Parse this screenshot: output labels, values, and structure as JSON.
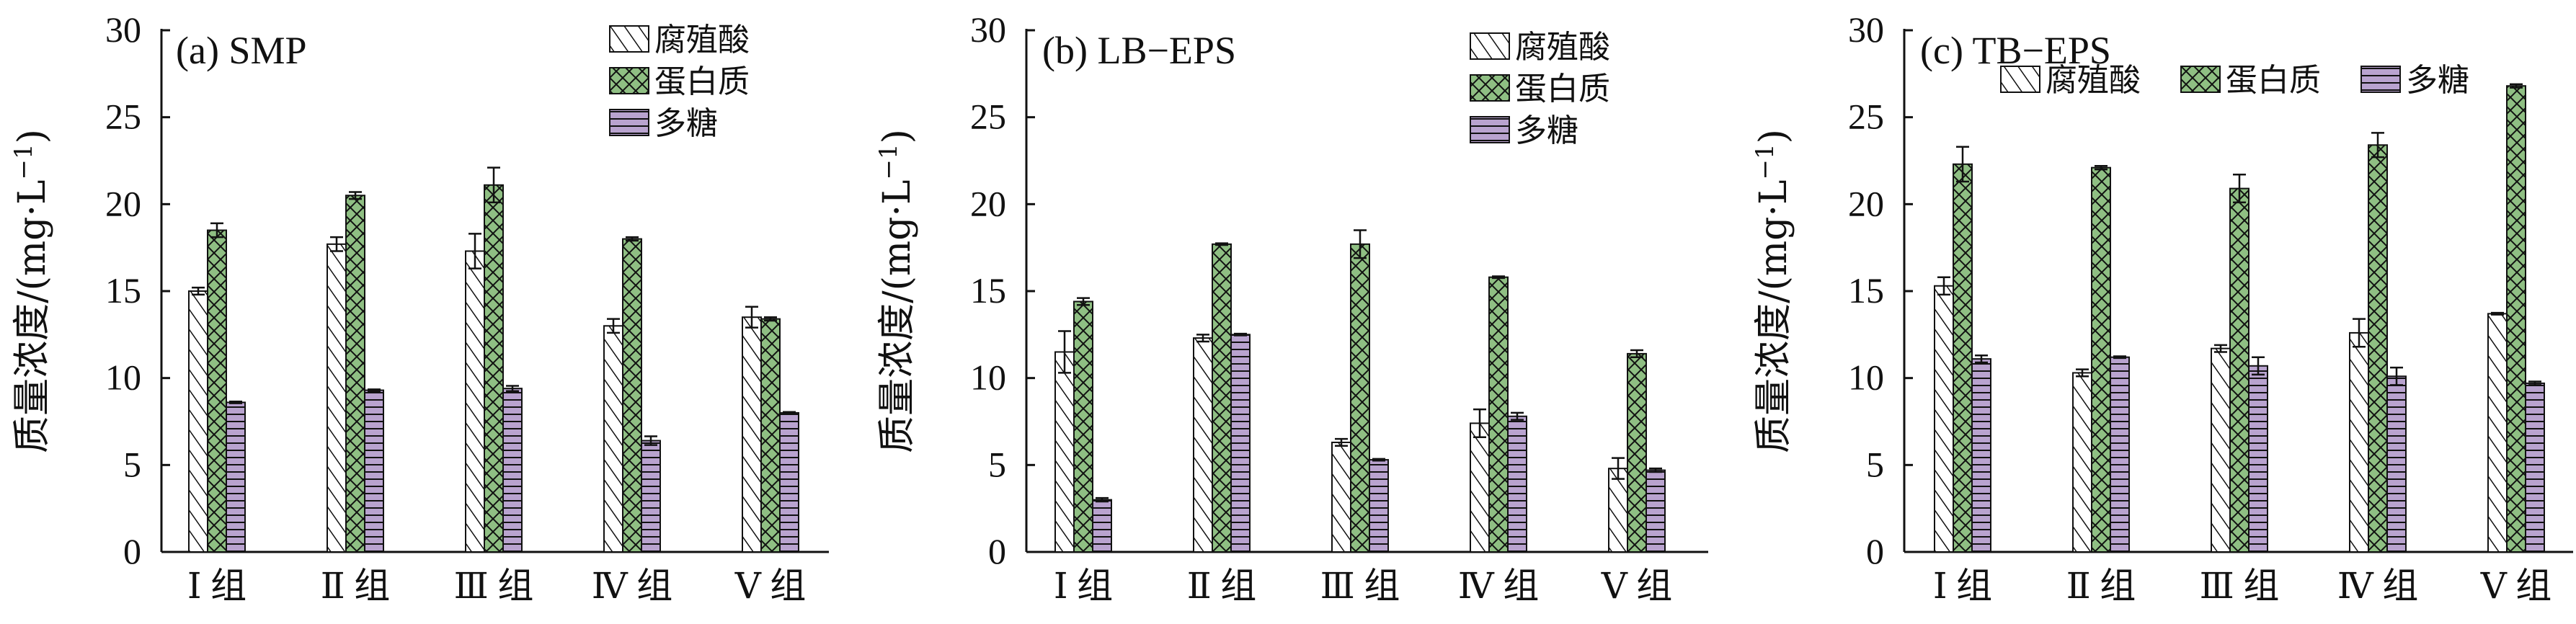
{
  "colors": {
    "humic": "#ffffff",
    "protein": "#8fbf83",
    "polysaccharide": "#b9a3cf",
    "stroke": "#111111"
  },
  "chart_data": [
    {
      "type": "bar",
      "title": "(a)  SMP",
      "ylabel": "质量浓度/(mg·L",
      "ylabel_sup": "−1",
      "ylabel_close": ")",
      "ylim": [
        0,
        30
      ],
      "yticks": [
        "0",
        "5",
        "10",
        "15",
        "20",
        "25",
        "30"
      ],
      "categories": [
        "Ⅰ 组",
        "Ⅱ 组",
        "Ⅲ 组",
        "Ⅳ 组",
        "Ⅴ 组"
      ],
      "legend_position": "top-right-stacked",
      "series": [
        {
          "name": "腐殖酸",
          "key": "humic",
          "values": [
            15.0,
            17.7,
            17.3,
            13.0,
            13.5
          ],
          "errors": [
            0.2,
            0.4,
            1.0,
            0.4,
            0.6
          ]
        },
        {
          "name": "蛋白质",
          "key": "protein",
          "values": [
            18.5,
            20.5,
            21.1,
            18.0,
            13.4
          ],
          "errors": [
            0.4,
            0.2,
            1.0,
            0.1,
            0.1
          ]
        },
        {
          "name": "多糖",
          "key": "polysaccharide",
          "values": [
            8.6,
            9.3,
            9.4,
            6.4,
            8.0
          ],
          "errors": [
            0.05,
            0.05,
            0.15,
            0.25,
            0.05
          ]
        }
      ]
    },
    {
      "type": "bar",
      "title": "(b)  LB−EPS",
      "ylabel": "质量浓度/(mg·L",
      "ylabel_sup": "−1",
      "ylabel_close": ")",
      "ylim": [
        0,
        30
      ],
      "yticks": [
        "0",
        "5",
        "10",
        "15",
        "20",
        "25",
        "30"
      ],
      "categories": [
        "Ⅰ 组",
        "Ⅱ 组",
        "Ⅲ 组",
        "Ⅳ 组",
        "Ⅴ 组"
      ],
      "legend_position": "top-right-stacked",
      "series": [
        {
          "name": "腐殖酸",
          "key": "humic",
          "values": [
            11.5,
            12.3,
            6.3,
            7.4,
            4.8
          ],
          "errors": [
            1.2,
            0.2,
            0.2,
            0.8,
            0.6
          ]
        },
        {
          "name": "蛋白质",
          "key": "protein",
          "values": [
            14.4,
            17.7,
            17.7,
            15.8,
            11.4
          ],
          "errors": [
            0.2,
            0.05,
            0.8,
            0.05,
            0.2
          ]
        },
        {
          "name": "多糖",
          "key": "polysaccharide",
          "values": [
            3.0,
            12.5,
            5.3,
            7.8,
            4.7
          ],
          "errors": [
            0.1,
            0.05,
            0.05,
            0.2,
            0.1
          ]
        }
      ]
    },
    {
      "type": "bar",
      "title": "(c)  TB−EPS",
      "ylabel": "质量浓度/(mg·L",
      "ylabel_sup": "−1",
      "ylabel_close": ")",
      "ylim": [
        0,
        30
      ],
      "yticks": [
        "0",
        "5",
        "10",
        "15",
        "20",
        "25",
        "30"
      ],
      "categories": [
        "Ⅰ 组",
        "Ⅱ 组",
        "Ⅲ 组",
        "Ⅳ 组",
        "Ⅴ 组"
      ],
      "legend_position": "top-single-row",
      "series": [
        {
          "name": "腐殖酸",
          "key": "humic",
          "values": [
            15.3,
            10.3,
            11.7,
            12.6,
            13.7
          ],
          "errors": [
            0.5,
            0.2,
            0.2,
            0.8,
            0.05
          ]
        },
        {
          "name": "蛋白质",
          "key": "protein",
          "values": [
            22.3,
            22.1,
            20.9,
            23.4,
            26.8
          ],
          "errors": [
            1.0,
            0.1,
            0.8,
            0.7,
            0.1
          ]
        },
        {
          "name": "多糖",
          "key": "polysaccharide",
          "values": [
            11.1,
            11.2,
            10.7,
            10.1,
            9.7
          ],
          "errors": [
            0.2,
            0.05,
            0.5,
            0.5,
            0.1
          ]
        }
      ]
    }
  ]
}
